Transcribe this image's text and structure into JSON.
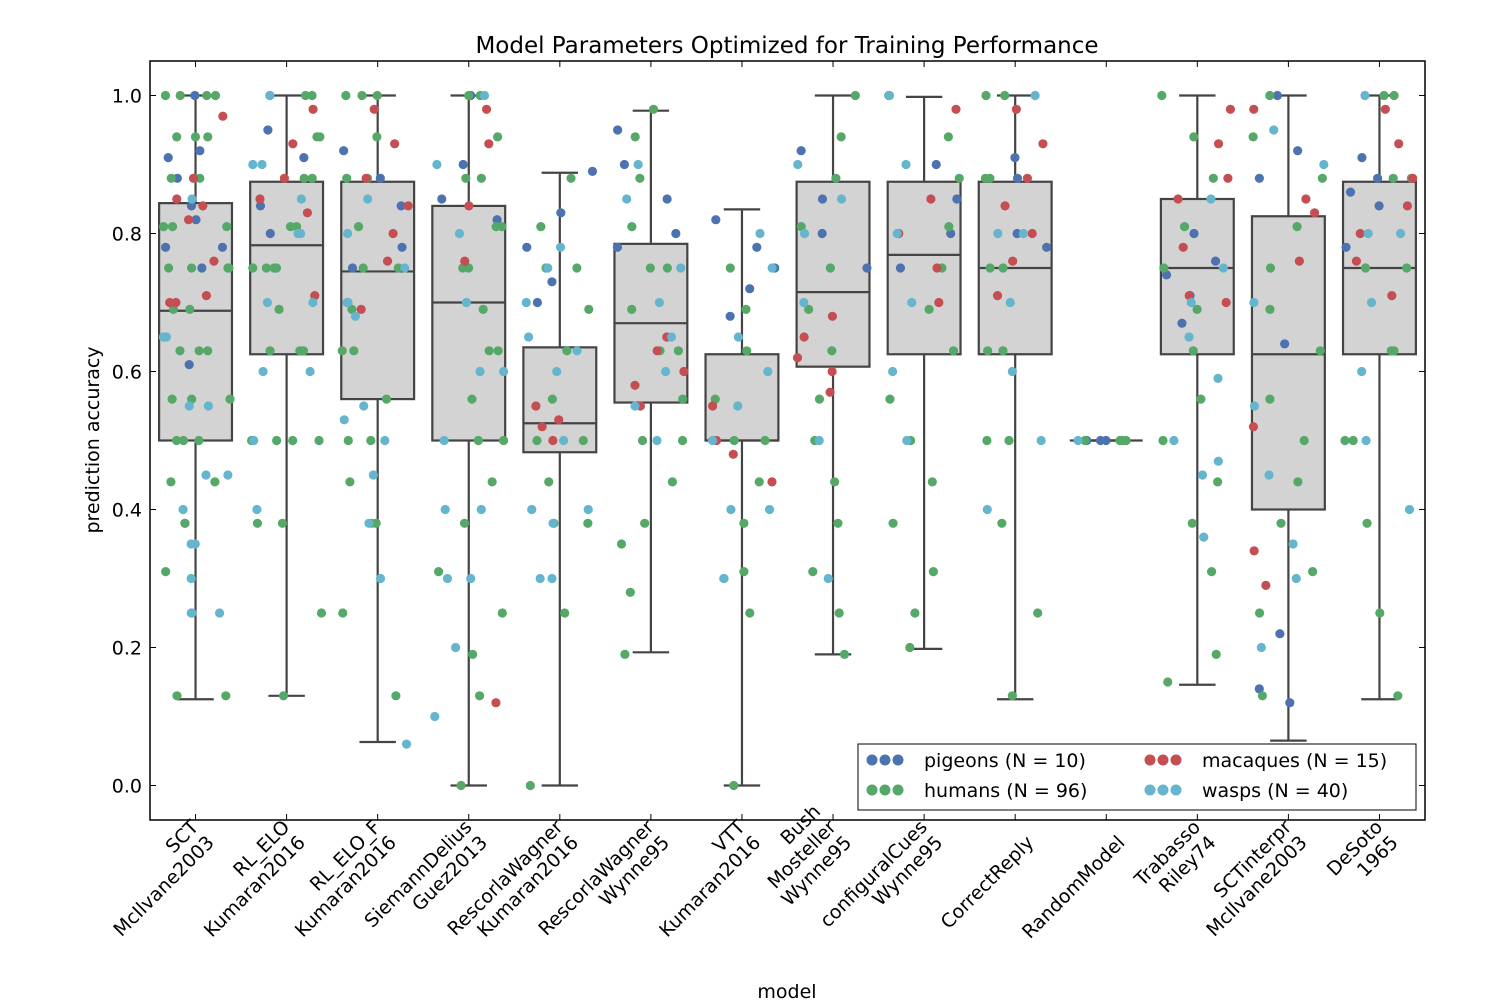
{
  "chart_data": {
    "type": "box",
    "title": "Model Parameters Optimized for Training Performance",
    "xlabel": "model",
    "ylabel": "prediction accuracy",
    "ylim": [
      -0.05,
      1.05
    ],
    "yticks": [
      "0.0",
      "0.2",
      "0.4",
      "0.6",
      "0.8",
      "1.0"
    ],
    "grid": false,
    "legend_position": "lower-right",
    "categories": [
      [
        "SCT",
        "McIlvane2003"
      ],
      [
        "RL_ELO",
        "Kumaran2016"
      ],
      [
        "RL_ELO_F",
        "Kumaran2016"
      ],
      [
        "SiemannDelius",
        "Guez2013"
      ],
      [
        "RescorlaWagner",
        "Kumaran2016"
      ],
      [
        "RescorlaWagner",
        "Wynne95"
      ],
      [
        "VTT",
        "Kumaran2016"
      ],
      [
        "Bush",
        "Mosteller",
        "Wynne95"
      ],
      [
        "configuralCues",
        "Wynne95"
      ],
      [
        "CorrectReply"
      ],
      [
        "RandomModel"
      ],
      [
        "Trabasso",
        "Riley74"
      ],
      [
        "SCTinterpr",
        "McIlvane2003"
      ],
      [
        "DeSoto",
        "1965"
      ]
    ],
    "boxes": [
      {
        "low": 0.125,
        "q1": 0.5,
        "median": 0.688,
        "q3": 0.844,
        "high": 1.0
      },
      {
        "low": 0.13,
        "q1": 0.625,
        "median": 0.783,
        "q3": 0.875,
        "high": 1.0
      },
      {
        "low": 0.063,
        "q1": 0.56,
        "median": 0.745,
        "q3": 0.875,
        "high": 1.0
      },
      {
        "low": 0.0,
        "q1": 0.5,
        "median": 0.7,
        "q3": 0.84,
        "high": 1.0
      },
      {
        "low": 0.0,
        "q1": 0.483,
        "median": 0.525,
        "q3": 0.635,
        "high": 0.888
      },
      {
        "low": 0.193,
        "q1": 0.555,
        "median": 0.67,
        "q3": 0.785,
        "high": 0.978
      },
      {
        "low": 0.0,
        "q1": 0.5,
        "median": 0.5,
        "q3": 0.625,
        "high": 0.835
      },
      {
        "low": 0.19,
        "q1": 0.607,
        "median": 0.715,
        "q3": 0.875,
        "high": 1.0
      },
      {
        "low": 0.198,
        "q1": 0.625,
        "median": 0.769,
        "q3": 0.875,
        "high": 0.998
      },
      {
        "low": 0.125,
        "q1": 0.625,
        "median": 0.75,
        "q3": 0.875,
        "high": 1.0
      },
      {
        "low": 0.5,
        "q1": 0.5,
        "median": 0.5,
        "q3": 0.5,
        "high": 0.5
      },
      {
        "low": 0.146,
        "q1": 0.625,
        "median": 0.75,
        "q3": 0.85,
        "high": 1.0
      },
      {
        "low": 0.065,
        "q1": 0.4,
        "median": 0.625,
        "q3": 0.825,
        "high": 1.0
      },
      {
        "low": 0.125,
        "q1": 0.625,
        "median": 0.75,
        "q3": 0.875,
        "high": 1.0
      }
    ],
    "series": [
      {
        "name": "pigeons (N = 10)",
        "color": "#4c72b0",
        "key": "pigeons"
      },
      {
        "name": "humans (N = 96)",
        "color": "#55a868",
        "key": "humans"
      },
      {
        "name": "macaques (N = 15)",
        "color": "#c44e52",
        "key": "macaques"
      },
      {
        "name": "wasps (N = 40)",
        "color": "#64b5cd",
        "key": "wasps"
      }
    ],
    "points": [
      {
        "pigeons": [
          1.0,
          0.92,
          0.91,
          0.88,
          0.84,
          0.82,
          0.78,
          0.78,
          0.75,
          0.61
        ],
        "humans": [
          1.0,
          1.0,
          1.0,
          1.0,
          0.94,
          0.94,
          0.94,
          0.88,
          0.88,
          0.88,
          0.81,
          0.81,
          0.81,
          0.75,
          0.75,
          0.75,
          0.75,
          0.69,
          0.69,
          0.63,
          0.63,
          0.63,
          0.56,
          0.56,
          0.56,
          0.5,
          0.5,
          0.5,
          0.44,
          0.44,
          0.38,
          0.38,
          0.31,
          0.13,
          0.13
        ],
        "macaques": [
          0.97,
          0.88,
          0.85,
          0.84,
          0.82,
          0.76,
          0.71,
          0.7,
          0.7
        ],
        "wasps": [
          0.85,
          0.65,
          0.65,
          0.55,
          0.55,
          0.45,
          0.45,
          0.4,
          0.35,
          0.35,
          0.3,
          0.25,
          0.25,
          0.25
        ]
      },
      {
        "pigeons": [
          1.0,
          0.95,
          0.91,
          0.84,
          0.8
        ],
        "humans": [
          1.0,
          1.0,
          0.94,
          0.94,
          0.88,
          0.88,
          0.81,
          0.81,
          0.75,
          0.75,
          0.75,
          0.75,
          0.69,
          0.63,
          0.63,
          0.63,
          0.5,
          0.5,
          0.5,
          0.5,
          0.38,
          0.38,
          0.25,
          0.13
        ],
        "macaques": [
          0.98,
          0.93,
          0.88,
          0.85,
          0.83,
          0.71
        ],
        "wasps": [
          1.0,
          0.9,
          0.9,
          0.85,
          0.8,
          0.8,
          0.7,
          0.7,
          0.6,
          0.6,
          0.5,
          0.4
        ]
      },
      {
        "pigeons": [
          0.92,
          0.88,
          0.84,
          0.78,
          0.75
        ],
        "humans": [
          1.0,
          1.0,
          1.0,
          0.94,
          0.88,
          0.88,
          0.81,
          0.75,
          0.75,
          0.69,
          0.63,
          0.63,
          0.56,
          0.5,
          0.5,
          0.44,
          0.38,
          0.38,
          0.25,
          0.13
        ],
        "macaques": [
          0.98,
          0.93,
          0.88,
          0.84,
          0.8,
          0.76,
          0.69
        ],
        "wasps": [
          0.85,
          0.8,
          0.75,
          0.7,
          0.7,
          0.68,
          0.55,
          0.53,
          0.5,
          0.45,
          0.38,
          0.3,
          0.06
        ]
      },
      {
        "pigeons": [
          1.0,
          0.9,
          0.85,
          0.82
        ],
        "humans": [
          1.0,
          1.0,
          0.94,
          0.88,
          0.88,
          0.81,
          0.81,
          0.75,
          0.75,
          0.69,
          0.63,
          0.63,
          0.56,
          0.5,
          0.5,
          0.44,
          0.38,
          0.31,
          0.25,
          0.19,
          0.13,
          0.0
        ],
        "macaques": [
          0.98,
          0.93,
          0.84,
          0.76,
          0.12
        ],
        "wasps": [
          1.0,
          0.9,
          0.8,
          0.7,
          0.6,
          0.6,
          0.5,
          0.4,
          0.4,
          0.3,
          0.3,
          0.2,
          0.1
        ]
      },
      {
        "pigeons": [
          0.89,
          0.83,
          0.78,
          0.73,
          0.7
        ],
        "humans": [
          0.88,
          0.81,
          0.75,
          0.75,
          0.69,
          0.63,
          0.56,
          0.5,
          0.5,
          0.44,
          0.38,
          0.38,
          0.25,
          0.0
        ],
        "macaques": [
          0.55,
          0.53,
          0.52,
          0.5
        ],
        "wasps": [
          0.78,
          0.75,
          0.7,
          0.65,
          0.63,
          0.6,
          0.5,
          0.4,
          0.4,
          0.38,
          0.3,
          0.3
        ]
      },
      {
        "pigeons": [
          0.95,
          0.9,
          0.85,
          0.8,
          0.78
        ],
        "humans": [
          0.98,
          0.94,
          0.88,
          0.81,
          0.75,
          0.75,
          0.69,
          0.63,
          0.63,
          0.56,
          0.5,
          0.5,
          0.44,
          0.38,
          0.35,
          0.28,
          0.19
        ],
        "macaques": [
          0.65,
          0.63,
          0.6,
          0.58,
          0.55
        ],
        "wasps": [
          0.9,
          0.85,
          0.75,
          0.7,
          0.65,
          0.6,
          0.55,
          0.5
        ]
      },
      {
        "pigeons": [
          0.82,
          0.78,
          0.75,
          0.72,
          0.68
        ],
        "humans": [
          0.75,
          0.69,
          0.63,
          0.56,
          0.5,
          0.5,
          0.44,
          0.38,
          0.31,
          0.25,
          0.0
        ],
        "macaques": [
          0.55,
          0.5,
          0.48,
          0.44
        ],
        "wasps": [
          0.8,
          0.75,
          0.65,
          0.6,
          0.55,
          0.5,
          0.4,
          0.4,
          0.3,
          0.3
        ]
      },
      {
        "pigeons": [
          0.92,
          0.85,
          0.8,
          0.75
        ],
        "humans": [
          1.0,
          0.94,
          0.88,
          0.81,
          0.75,
          0.69,
          0.63,
          0.56,
          0.5,
          0.44,
          0.38,
          0.31,
          0.25,
          0.19
        ],
        "macaques": [
          0.68,
          0.65,
          0.62,
          0.6,
          0.57
        ],
        "wasps": [
          0.9,
          0.85,
          0.8,
          0.7,
          0.5,
          0.3
        ]
      },
      {
        "pigeons": [
          0.9,
          0.85,
          0.8,
          0.75
        ],
        "humans": [
          1.0,
          0.94,
          0.88,
          0.81,
          0.75,
          0.69,
          0.63,
          0.56,
          0.5,
          0.44,
          0.38,
          0.31,
          0.25,
          0.2
        ],
        "macaques": [
          0.98,
          0.85,
          0.8,
          0.75,
          0.7
        ],
        "wasps": [
          1.0,
          0.9,
          0.8,
          0.7,
          0.6,
          0.5
        ]
      },
      {
        "pigeons": [
          0.91,
          0.88,
          0.8,
          0.78
        ],
        "humans": [
          1.0,
          1.0,
          0.88,
          0.88,
          0.75,
          0.75,
          0.63,
          0.63,
          0.5,
          0.5,
          0.38,
          0.25,
          0.13
        ],
        "macaques": [
          0.98,
          0.93,
          0.88,
          0.84,
          0.8,
          0.76,
          0.71
        ],
        "wasps": [
          1.0,
          0.8,
          0.8,
          0.7,
          0.6,
          0.5,
          0.4
        ]
      },
      {
        "pigeons": [
          0.5,
          0.5,
          0.5
        ],
        "humans": [
          0.5,
          0.5,
          0.5,
          0.5
        ],
        "macaques": [],
        "wasps": [
          0.5
        ]
      },
      {
        "pigeons": [
          0.8,
          0.76,
          0.74,
          0.71,
          0.67
        ],
        "humans": [
          1.0,
          0.94,
          0.88,
          0.81,
          0.75,
          0.69,
          0.63,
          0.56,
          0.5,
          0.44,
          0.38,
          0.31,
          0.19,
          0.15
        ],
        "macaques": [
          0.98,
          0.93,
          0.88,
          0.85,
          0.78,
          0.71,
          0.7
        ],
        "wasps": [
          0.85,
          0.75,
          0.7,
          0.65,
          0.59,
          0.5,
          0.47,
          0.45,
          0.36
        ]
      },
      {
        "pigeons": [
          1.0,
          0.92,
          0.88,
          0.64,
          0.22,
          0.14,
          0.12
        ],
        "humans": [
          1.0,
          0.94,
          0.88,
          0.81,
          0.75,
          0.69,
          0.63,
          0.56,
          0.5,
          0.44,
          0.38,
          0.31,
          0.25,
          0.13
        ],
        "macaques": [
          0.98,
          0.85,
          0.83,
          0.76,
          0.52,
          0.34,
          0.29
        ],
        "wasps": [
          0.95,
          0.9,
          0.7,
          0.55,
          0.45,
          0.35,
          0.3,
          0.2
        ]
      },
      {
        "pigeons": [
          0.91,
          0.88,
          0.86,
          0.84,
          0.78
        ],
        "humans": [
          1.0,
          1.0,
          0.88,
          0.88,
          0.75,
          0.75,
          0.63,
          0.63,
          0.5,
          0.5,
          0.38,
          0.25,
          0.13
        ],
        "macaques": [
          0.98,
          0.93,
          0.88,
          0.84,
          0.8,
          0.76,
          0.71
        ],
        "wasps": [
          1.0,
          0.8,
          0.8,
          0.7,
          0.6,
          0.5,
          0.4
        ]
      }
    ]
  }
}
